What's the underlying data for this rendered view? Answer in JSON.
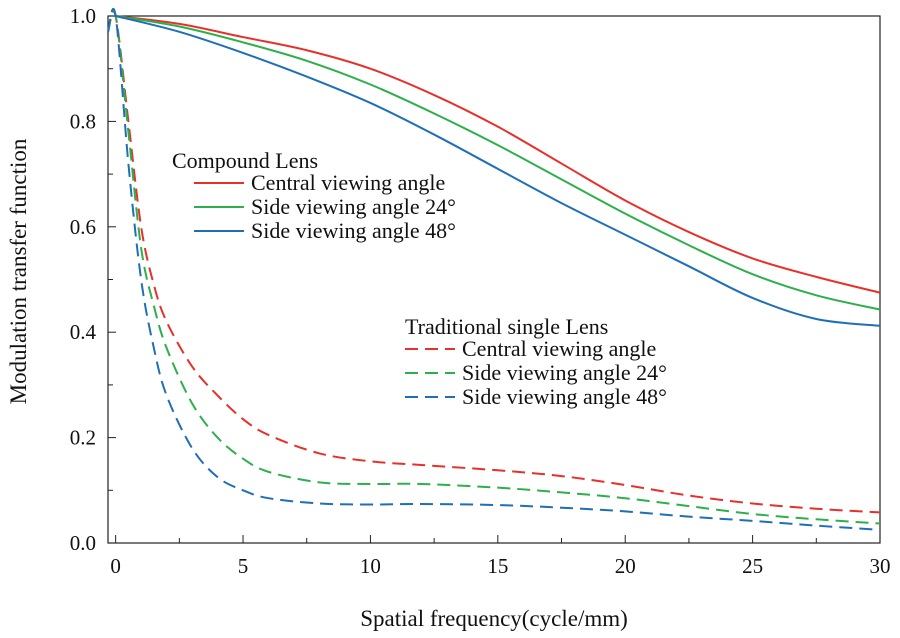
{
  "chart_data": {
    "type": "line",
    "title": "",
    "xlabel": "Spatial frequency(cycle/mm)",
    "ylabel": "Modulation transfer function",
    "xlim": [
      -0.3,
      30
    ],
    "ylim": [
      0,
      1.0
    ],
    "xticks": [
      0,
      5,
      10,
      15,
      20,
      25,
      30
    ],
    "xtick_labels": [
      "0",
      "5",
      "10",
      "15",
      "20",
      "25",
      "30"
    ],
    "yticks": [
      0.0,
      0.2,
      0.4,
      0.6,
      0.8,
      1.0
    ],
    "ytick_labels": [
      "0.0",
      "0.2",
      "0.4",
      "0.6",
      "0.8",
      "1.0"
    ],
    "legend_groups": [
      {
        "title": "Compound Lens",
        "placement": "center-left",
        "entries": [
          {
            "label": "Central viewing angle",
            "color": "#e8302a",
            "dash": "solid"
          },
          {
            "label": "Side viewing angle 24°",
            "color": "#2db04b",
            "dash": "solid"
          },
          {
            "label": "Side viewing angle 48°",
            "color": "#1f6fb8",
            "dash": "solid"
          }
        ]
      },
      {
        "title": "Traditional single Lens",
        "placement": "center-right",
        "entries": [
          {
            "label": "Central viewing angle",
            "color": "#e8302a",
            "dash": "dashed"
          },
          {
            "label": "Side viewing angle 24°",
            "color": "#2db04b",
            "dash": "dashed"
          },
          {
            "label": "Side viewing angle 48°",
            "color": "#1f6fb8",
            "dash": "dashed"
          }
        ]
      }
    ],
    "series": [
      {
        "name": "Compound Lens - Central viewing angle",
        "color": "#e8302a",
        "dash": "solid",
        "x": [
          0,
          2.5,
          5,
          7.5,
          10,
          12.5,
          15,
          17.5,
          20,
          22.5,
          25,
          27.5,
          30
        ],
        "y": [
          1.0,
          0.985,
          0.96,
          0.935,
          0.9,
          0.85,
          0.79,
          0.72,
          0.65,
          0.59,
          0.54,
          0.505,
          0.475
        ]
      },
      {
        "name": "Compound Lens - Side viewing angle 24°",
        "color": "#2db04b",
        "dash": "solid",
        "x": [
          0,
          2.5,
          5,
          7.5,
          10,
          12.5,
          15,
          17.5,
          20,
          22.5,
          25,
          27.5,
          30
        ],
        "y": [
          1.0,
          0.98,
          0.95,
          0.915,
          0.87,
          0.815,
          0.755,
          0.69,
          0.625,
          0.565,
          0.51,
          0.47,
          0.443
        ]
      },
      {
        "name": "Compound Lens - Side viewing angle 48°",
        "color": "#1f6fb8",
        "dash": "solid",
        "x": [
          0,
          2.5,
          5,
          7.5,
          10,
          12.5,
          15,
          17.5,
          20,
          22.5,
          25,
          27.5,
          30
        ],
        "y": [
          1.0,
          0.97,
          0.93,
          0.885,
          0.835,
          0.775,
          0.71,
          0.645,
          0.585,
          0.525,
          0.465,
          0.425,
          0.412
        ]
      },
      {
        "name": "Traditional single Lens - Central viewing angle",
        "color": "#e8302a",
        "dash": "dashed",
        "x": [
          -0.3,
          0,
          0.5,
          1,
          1.5,
          2,
          3,
          4,
          5,
          6,
          8,
          10,
          12,
          15,
          17.5,
          20,
          22.5,
          25,
          27.5,
          30
        ],
        "y": [
          0.97,
          1.0,
          0.8,
          0.6,
          0.49,
          0.42,
          0.335,
          0.28,
          0.235,
          0.205,
          0.17,
          0.155,
          0.148,
          0.138,
          0.127,
          0.11,
          0.09,
          0.075,
          0.065,
          0.058
        ]
      },
      {
        "name": "Traditional single Lens - Side viewing angle 24°",
        "color": "#2db04b",
        "dash": "dashed",
        "x": [
          -0.3,
          0,
          0.5,
          1,
          1.5,
          2,
          3,
          4,
          5,
          6,
          8,
          10,
          12,
          15,
          17.5,
          20,
          22.5,
          25,
          27.5,
          30
        ],
        "y": [
          0.97,
          1.0,
          0.78,
          0.56,
          0.45,
          0.37,
          0.265,
          0.2,
          0.16,
          0.135,
          0.115,
          0.112,
          0.112,
          0.105,
          0.096,
          0.085,
          0.07,
          0.055,
          0.045,
          0.037
        ]
      },
      {
        "name": "Traditional single Lens - Side viewing angle 48°",
        "color": "#1f6fb8",
        "dash": "dashed",
        "x": [
          -0.3,
          0,
          0.5,
          1,
          1.5,
          2,
          3,
          4,
          5,
          6,
          8,
          10,
          12,
          15,
          17.5,
          20,
          22.5,
          25,
          27.5,
          30
        ],
        "y": [
          0.97,
          1.0,
          0.72,
          0.5,
          0.37,
          0.28,
          0.18,
          0.125,
          0.1,
          0.085,
          0.075,
          0.073,
          0.074,
          0.072,
          0.067,
          0.06,
          0.05,
          0.042,
          0.033,
          0.025
        ]
      }
    ]
  }
}
